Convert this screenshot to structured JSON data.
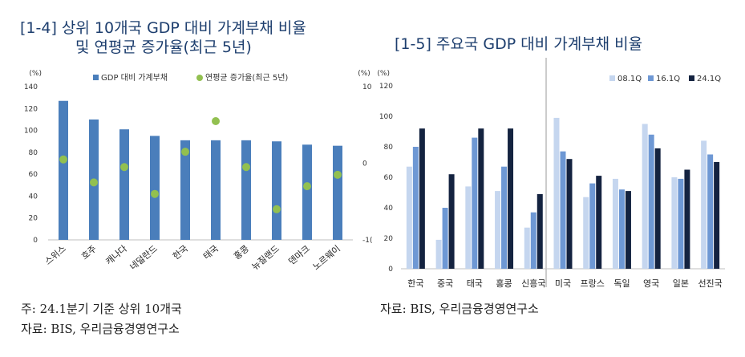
{
  "left": {
    "title_line1": "[1-4] 상위 10개국 GDP 대비 가계부채 비율",
    "title_line2": "및 연평균 증가율(최근 5년)",
    "note": "주: 24.1분기 기준 상위 10개국",
    "source": "자료: BIS, 우리금융경영연구소"
  },
  "right": {
    "title": "[1-5] 주요국 GDP 대비 가계부채 비율",
    "source": "자료: BIS, 우리금융경영연구소"
  },
  "chart_data": [
    {
      "type": "bar",
      "title": "[1-4] 상위 10개국 GDP 대비 가계부채 비율 및 연평균 증가율(최근 5년)",
      "categories": [
        "스위스",
        "호주",
        "캐나다",
        "네덜란드",
        "한국",
        "태국",
        "홍콩",
        "뉴질랜드",
        "덴마크",
        "노르웨이"
      ],
      "series": [
        {
          "name": "GDP 대비 가계부채",
          "axis": "left",
          "kind": "bar",
          "color": "#4a7ebb",
          "values": [
            127,
            110,
            101,
            95,
            91,
            91,
            91,
            90,
            87,
            86
          ]
        },
        {
          "name": "연평균 증가율(최근 5년)",
          "axis": "right",
          "kind": "dot",
          "color": "#92c050",
          "values": [
            0.5,
            -2.5,
            -0.5,
            -4,
            1.5,
            5.5,
            -0.5,
            -6,
            -3,
            -1.5
          ]
        }
      ],
      "y_left": {
        "unit": "(%)",
        "ylim": [
          0,
          140
        ],
        "ticks": [
          0,
          20,
          40,
          60,
          80,
          100,
          120,
          140
        ]
      },
      "y_right": {
        "unit": "(%)",
        "ylim": [
          -10,
          10
        ],
        "ticks": [
          "10",
          "0",
          "-1("
        ]
      },
      "legend_position": "top",
      "grid": false
    },
    {
      "type": "bar",
      "title": "[1-5] 주요국 GDP 대비 가계부채 비율",
      "categories": [
        "한국",
        "중국",
        "태국",
        "홍콩",
        "신흥국",
        "미국",
        "프랑스",
        "독일",
        "영국",
        "일본",
        "선진국"
      ],
      "series": [
        {
          "name": "08.1Q",
          "color": "#c5d6ef",
          "values": [
            67,
            19,
            54,
            51,
            27,
            99,
            47,
            59,
            95,
            60,
            84
          ]
        },
        {
          "name": "16.1Q",
          "color": "#6e98d4",
          "values": [
            80,
            40,
            86,
            67,
            37,
            77,
            56,
            52,
            88,
            59,
            75
          ]
        },
        {
          "name": "24.1Q",
          "color": "#142340",
          "values": [
            92,
            62,
            92,
            92,
            49,
            72,
            61,
            51,
            79,
            65,
            70
          ]
        }
      ],
      "y_left": {
        "unit": "(%)",
        "ylim": [
          0,
          120
        ],
        "ticks": [
          0,
          20,
          40,
          60,
          80,
          100,
          120
        ]
      },
      "legend_position": "top-right",
      "grid": false
    }
  ]
}
